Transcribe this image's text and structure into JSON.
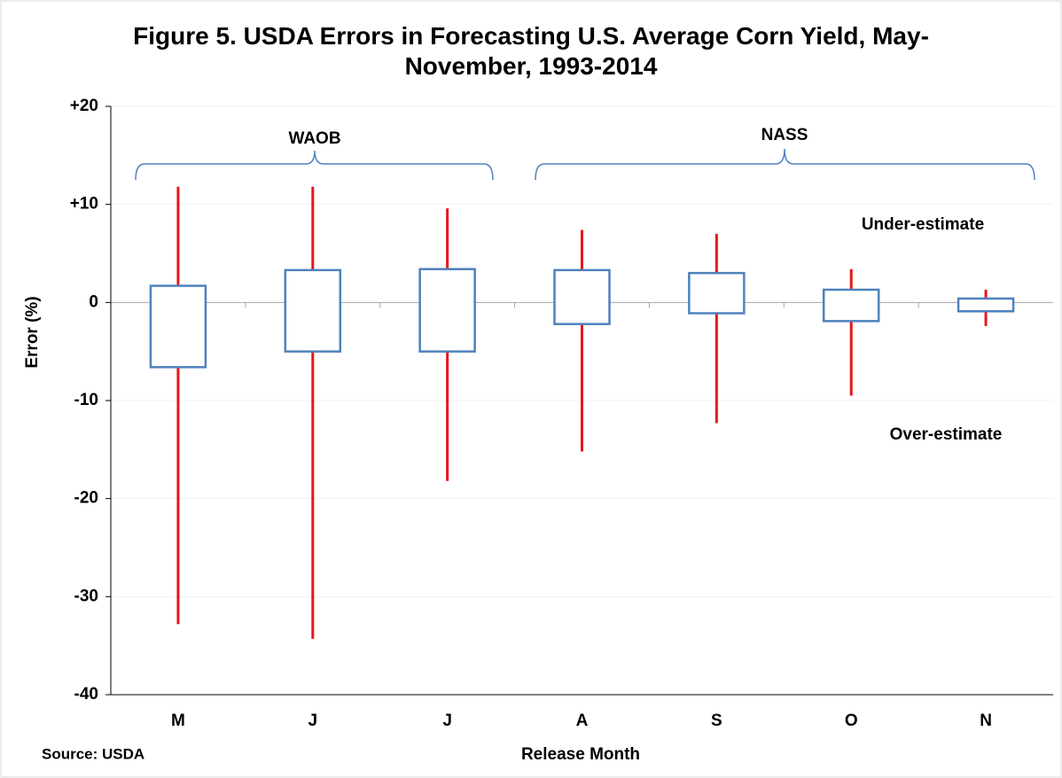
{
  "chart_data": {
    "type": "box",
    "title": "Figure 5. USDA Errors in Forecasting U.S. Average Corn Yield, May- November, 1993-2014",
    "x_label": "Release Month",
    "y_label": "Error (%)",
    "categories": [
      "M",
      "J",
      "J",
      "A",
      "S",
      "O",
      "N"
    ],
    "max": [
      11.8,
      11.8,
      9.6,
      7.4,
      7.0,
      3.4,
      1.3
    ],
    "upper": [
      1.7,
      3.3,
      3.4,
      3.3,
      3.0,
      1.3,
      0.4
    ],
    "lower": [
      -6.6,
      -5.0,
      -5.0,
      -2.2,
      -1.1,
      -1.9,
      -0.9
    ],
    "min": [
      -32.8,
      -34.3,
      -18.2,
      -15.2,
      -12.3,
      -9.5,
      -2.4
    ],
    "whisker_color": "#e8161b",
    "box_color": "#4f81bd",
    "ylim": [
      -40,
      20
    ],
    "yticks": [
      -40,
      -30,
      -20,
      -10,
      0,
      {
        "value": 10,
        "label": "+10"
      },
      {
        "value": 20,
        "label": "+20"
      }
    ],
    "grid": true,
    "groups": [
      "WAOB",
      "NASS"
    ],
    "annotations": [
      "Under-estimate",
      "Over-estimate"
    ],
    "source": "Source: USDA"
  }
}
